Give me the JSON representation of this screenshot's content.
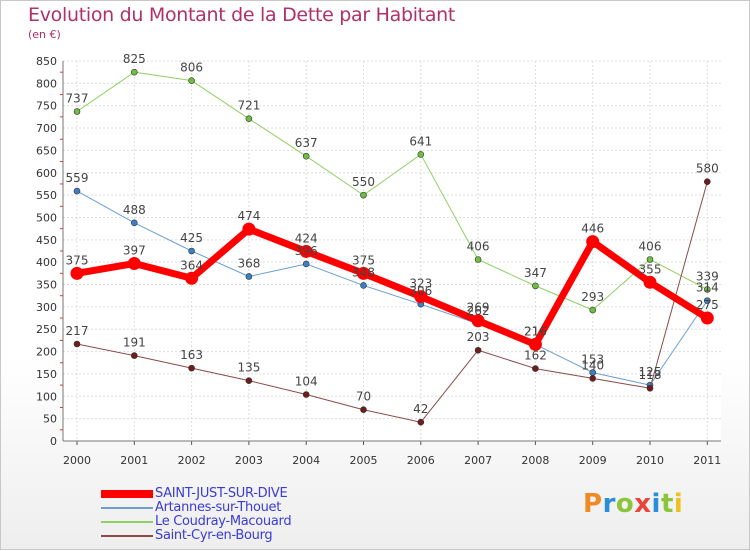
{
  "title": "Evolution du Montant de la Dette par Habitant",
  "subtitle": "(en €)",
  "logo": {
    "text": "Proxiti",
    "letter_colors": [
      "#f08a24",
      "#2a8fd8",
      "#8cc43c",
      "#e8463a",
      "#2a8fd8",
      "#8cc43c",
      "#f0c020"
    ]
  },
  "chart_data": {
    "type": "line",
    "x": [
      "2000",
      "2001",
      "2002",
      "2003",
      "2004",
      "2005",
      "2006",
      "2007",
      "2008",
      "2009",
      "2010",
      "2011"
    ],
    "ylim": [
      0,
      850
    ],
    "yticks": [
      0,
      50,
      100,
      150,
      200,
      250,
      300,
      350,
      400,
      450,
      500,
      550,
      600,
      650,
      700,
      750,
      800,
      850
    ],
    "grid": true,
    "legend_position": "bottom-left",
    "series": [
      {
        "name": "Le Coudray-Macouard",
        "color": "#8fd162",
        "line_width": 1,
        "point_color": "#6fbf3e",
        "values": [
          737,
          825,
          806,
          721,
          637,
          550,
          641,
          406,
          347,
          293,
          406,
          339
        ],
        "labels": [
          "737",
          "825",
          "806",
          "721",
          "637",
          "550",
          "641",
          "406",
          "347",
          "293",
          "406",
          "339"
        ]
      },
      {
        "name": "Artannes-sur-Thouet",
        "color": "#6a9ed4",
        "line_width": 1,
        "point_color": "#3c7fc6",
        "values": [
          559,
          488,
          425,
          368,
          396,
          348,
          306,
          262,
          216,
          153,
          125,
          314
        ],
        "labels": [
          "559",
          "488",
          "425",
          "368",
          "396",
          "348",
          "306",
          "262",
          "216",
          "153",
          "125",
          "314"
        ]
      },
      {
        "name": "Saint-Cyr-en-Bourg",
        "color": "#8a4a4a",
        "line_width": 1,
        "point_color": "#701c1c",
        "values": [
          217,
          191,
          163,
          135,
          104,
          70,
          42,
          203,
          162,
          140,
          118,
          580
        ],
        "labels": [
          "217",
          "191",
          "163",
          "135",
          "104",
          "70",
          "42",
          "203",
          "162",
          "140",
          "118",
          "580"
        ]
      },
      {
        "name": "SAINT-JUST-SUR-DIVE",
        "color": "#ff0000",
        "line_width": 7,
        "point_color": "#ff0000",
        "values": [
          375,
          397,
          364,
          474,
          424,
          375,
          323,
          269,
          216,
          446,
          355,
          275
        ],
        "labels": [
          "375",
          "397",
          "364",
          "474",
          "424",
          "375",
          "323",
          "269",
          "216",
          "446",
          "355",
          "275"
        ]
      }
    ],
    "legend_order": [
      "SAINT-JUST-SUR-DIVE",
      "Artannes-sur-Thouet",
      "Le Coudray-Macouard",
      "Saint-Cyr-en-Bourg"
    ]
  }
}
